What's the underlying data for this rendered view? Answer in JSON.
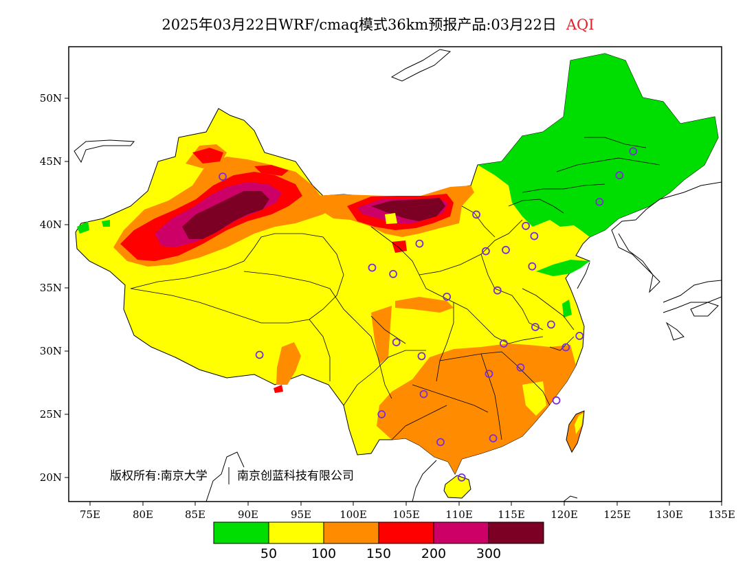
{
  "title": {
    "main": "2025年03月22日WRF/cmaq模式36km预报产品:03月22日",
    "variable": "AQI"
  },
  "axes": {
    "x_ticks": [
      "75E",
      "80E",
      "85E",
      "90E",
      "95E",
      "100E",
      "105E",
      "110E",
      "115E",
      "120E",
      "125E",
      "130E",
      "135E"
    ],
    "y_ticks": [
      "50N",
      "45N",
      "40N",
      "35N",
      "30N",
      "25N",
      "20N"
    ]
  },
  "copyright": {
    "left": "版权所有:南京大学",
    "right": "南京创蓝科技有限公司"
  },
  "legend": {
    "colors": [
      "#00dd00",
      "#ffff00",
      "#ff8c00",
      "#ff0000",
      "#cc0066",
      "#7b0023"
    ],
    "labels": [
      "50",
      "100",
      "150",
      "200",
      "300"
    ]
  },
  "chart_data": {
    "type": "heatmap",
    "title": "2025年03月22日WRF/cmaq模式36km预报产品:03月22日 AQI",
    "xlabel": "",
    "ylabel": "",
    "xlim": [
      73,
      135
    ],
    "ylim": [
      18,
      54
    ],
    "categories": [
      "<50",
      "50-100",
      "100-150",
      "150-200",
      "200-300",
      ">300"
    ],
    "regions": [
      {
        "area": "Northeast China",
        "level": "<50"
      },
      {
        "area": "North China Plain / Central / West China",
        "level": "50-100"
      },
      {
        "area": "Northern Xinjiang / Inner Mongolia",
        "level": "100-150"
      },
      {
        "area": "Southern China (Guangxi, Guangdong, Hunan)",
        "level": "100-150"
      },
      {
        "area": "Tarim / Junggar core",
        "level": ">300"
      },
      {
        "area": "Western Inner Mongolia core",
        "level": ">300"
      }
    ],
    "stations": [
      [
        87.6,
        43.8
      ],
      [
        91.1,
        29.7
      ],
      [
        101.8,
        36.6
      ],
      [
        103.8,
        36.1
      ],
      [
        106.3,
        38.5
      ],
      [
        111.7,
        40.8
      ],
      [
        112.6,
        37.9
      ],
      [
        114.5,
        38.0
      ],
      [
        116.4,
        39.9
      ],
      [
        117.2,
        39.1
      ],
      [
        117.0,
        36.7
      ],
      [
        113.7,
        34.8
      ],
      [
        108.9,
        34.3
      ],
      [
        104.1,
        30.7
      ],
      [
        106.5,
        29.6
      ],
      [
        114.3,
        30.6
      ],
      [
        117.3,
        31.9
      ],
      [
        118.8,
        32.1
      ],
      [
        121.5,
        31.2
      ],
      [
        120.2,
        30.3
      ],
      [
        112.9,
        28.2
      ],
      [
        115.9,
        28.7
      ],
      [
        119.3,
        26.1
      ],
      [
        106.7,
        26.6
      ],
      [
        102.7,
        25.0
      ],
      [
        108.3,
        22.8
      ],
      [
        113.3,
        23.1
      ],
      [
        110.3,
        20.0
      ],
      [
        123.4,
        41.8
      ],
      [
        125.3,
        43.9
      ],
      [
        126.6,
        45.8
      ]
    ]
  }
}
